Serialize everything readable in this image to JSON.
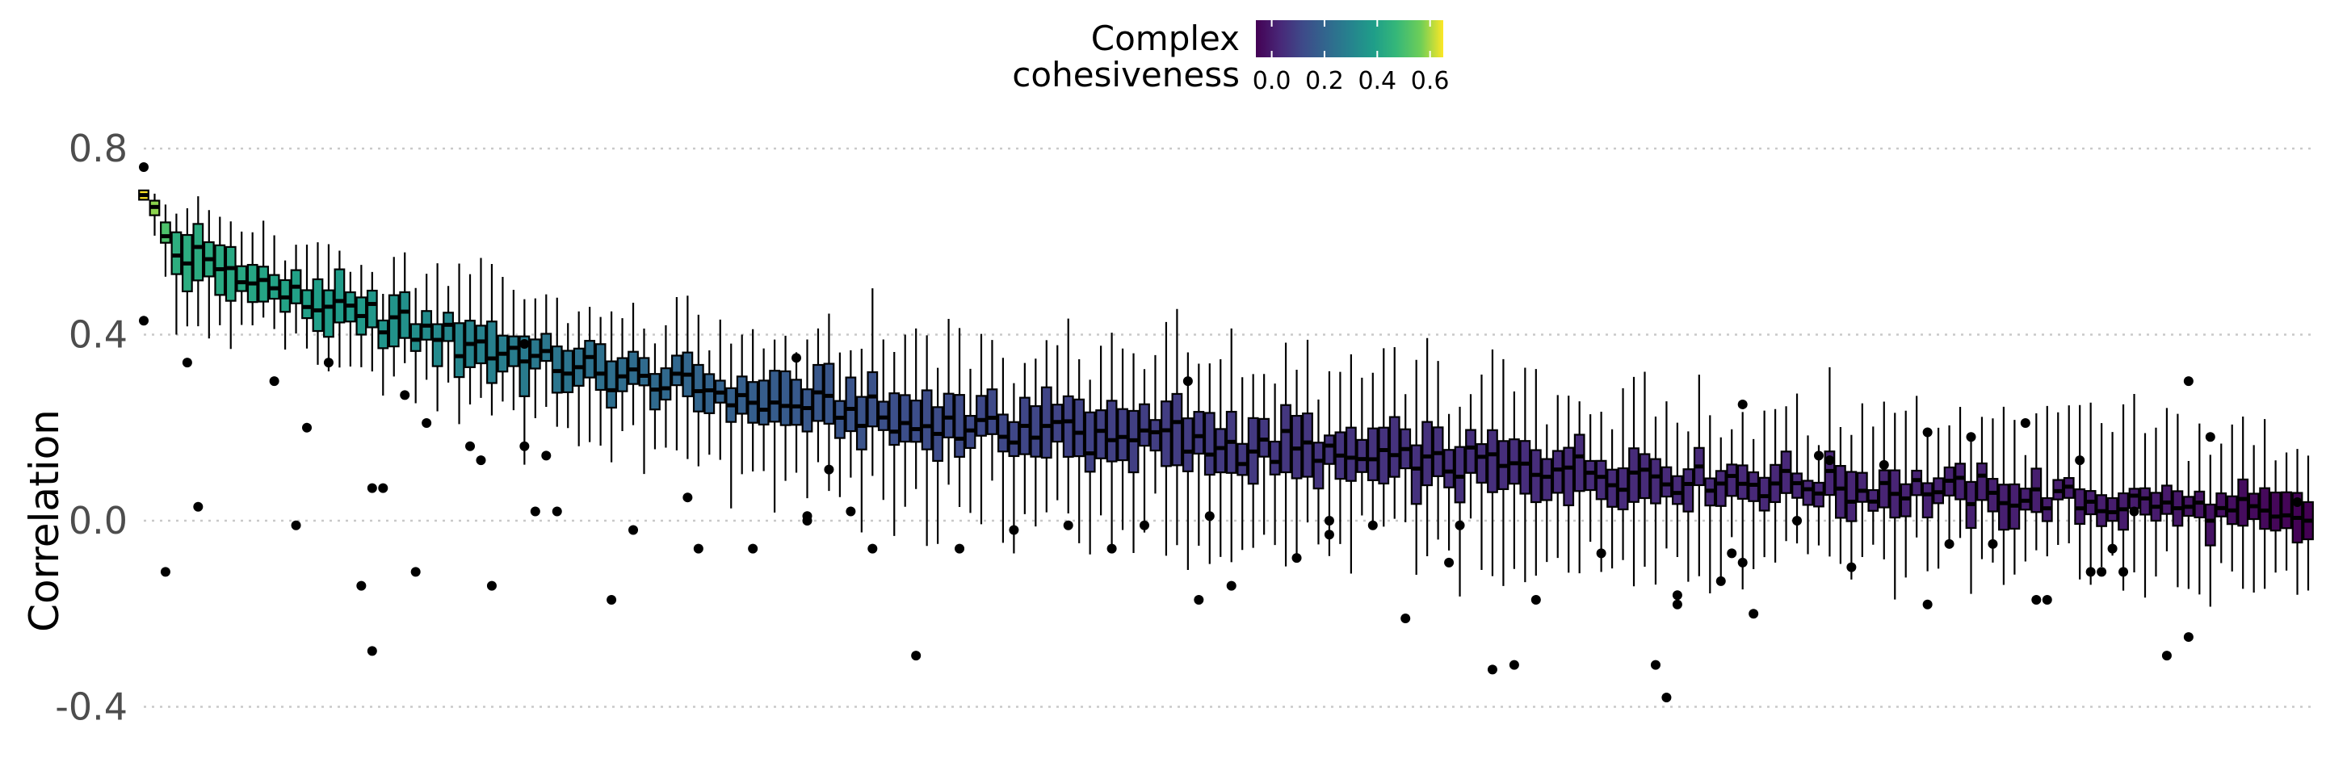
{
  "chart_data": {
    "type": "boxplot",
    "title": "",
    "xlabel": "",
    "ylabel": "Correlation",
    "ylim": [
      -0.43,
      0.86
    ],
    "y_ticks": [
      {
        "value": 0.8,
        "label": "0.8"
      },
      {
        "value": 0.4,
        "label": "0.4"
      },
      {
        "value": 0.0,
        "label": "0.0"
      },
      {
        "value": -0.4,
        "label": "-0.4"
      }
    ],
    "grid": "horizontal dotted",
    "x_ticks": "none",
    "color_legend": {
      "title_lines": [
        "Complex",
        "cohesiveness"
      ],
      "position": "top",
      "min": -0.06,
      "max": 0.65,
      "ticks": [
        {
          "value": 0.0,
          "label": "0.0"
        },
        {
          "value": 0.2,
          "label": "0.2"
        },
        {
          "value": 0.4,
          "label": "0.4"
        },
        {
          "value": 0.6,
          "label": "0.6"
        }
      ],
      "colormap": "viridis"
    },
    "boxes_order": "sorted by complex cohesiveness (descending); approximately 200 complexes",
    "box_count": 200,
    "anchors": [
      {
        "i": 0,
        "q1": 0.69,
        "med": 0.7,
        "q3": 0.71,
        "wlo": 0.69,
        "whi": 0.71,
        "color": 0.65
      },
      {
        "i": 3,
        "q1": 0.53,
        "med": 0.57,
        "q3": 0.62,
        "wlo": 0.4,
        "whi": 0.66,
        "color": 0.44
      },
      {
        "i": 10,
        "q1": 0.47,
        "med": 0.51,
        "q3": 0.55,
        "wlo": 0.42,
        "whi": 0.62,
        "color": 0.41
      },
      {
        "i": 20,
        "q1": 0.4,
        "med": 0.44,
        "q3": 0.48,
        "wlo": 0.33,
        "whi": 0.55,
        "color": 0.37
      },
      {
        "i": 30,
        "q1": 0.33,
        "med": 0.38,
        "q3": 0.43,
        "wlo": 0.25,
        "whi": 0.53,
        "color": 0.3
      },
      {
        "i": 40,
        "q1": 0.29,
        "med": 0.33,
        "q3": 0.37,
        "wlo": 0.16,
        "whi": 0.45,
        "color": 0.24
      },
      {
        "i": 55,
        "q1": 0.23,
        "med": 0.27,
        "q3": 0.31,
        "wlo": 0.1,
        "whi": 0.4,
        "color": 0.18
      },
      {
        "i": 70,
        "q1": 0.17,
        "med": 0.21,
        "q3": 0.27,
        "wlo": 0.03,
        "whi": 0.4,
        "color": 0.13
      },
      {
        "i": 90,
        "q1": 0.13,
        "med": 0.18,
        "q3": 0.24,
        "wlo": -0.02,
        "whi": 0.37,
        "color": 0.09
      },
      {
        "i": 110,
        "q1": 0.09,
        "med": 0.14,
        "q3": 0.19,
        "wlo": -0.05,
        "whi": 0.32,
        "color": 0.06
      },
      {
        "i": 130,
        "q1": 0.06,
        "med": 0.11,
        "q3": 0.15,
        "wlo": -0.08,
        "whi": 0.27,
        "color": 0.04
      },
      {
        "i": 150,
        "q1": 0.04,
        "med": 0.08,
        "q3": 0.12,
        "wlo": -0.09,
        "whi": 0.24,
        "color": 0.03
      },
      {
        "i": 170,
        "q1": 0.02,
        "med": 0.06,
        "q3": 0.09,
        "wlo": -0.09,
        "whi": 0.22,
        "color": 0.01
      },
      {
        "i": 185,
        "q1": 0.0,
        "med": 0.03,
        "q3": 0.06,
        "wlo": -0.12,
        "whi": 0.2,
        "color": 0.0
      },
      {
        "i": 199,
        "q1": -0.04,
        "med": 0.0,
        "q3": 0.04,
        "wlo": -0.15,
        "whi": 0.14,
        "color": -0.06
      }
    ],
    "outliers": [
      {
        "i": 0,
        "y": 0.76
      },
      {
        "i": 0,
        "y": 0.43
      },
      {
        "i": 2,
        "y": -0.11
      },
      {
        "i": 4,
        "y": 0.34
      },
      {
        "i": 5,
        "y": 0.03
      },
      {
        "i": 12,
        "y": 0.3
      },
      {
        "i": 14,
        "y": -0.01
      },
      {
        "i": 15,
        "y": 0.2
      },
      {
        "i": 17,
        "y": 0.34
      },
      {
        "i": 20,
        "y": -0.14
      },
      {
        "i": 21,
        "y": -0.28
      },
      {
        "i": 21,
        "y": 0.07
      },
      {
        "i": 22,
        "y": 0.07
      },
      {
        "i": 24,
        "y": 0.27
      },
      {
        "i": 25,
        "y": -0.11
      },
      {
        "i": 26,
        "y": 0.21
      },
      {
        "i": 30,
        "y": 0.16
      },
      {
        "i": 31,
        "y": 0.13
      },
      {
        "i": 32,
        "y": -0.14
      },
      {
        "i": 35,
        "y": 0.38
      },
      {
        "i": 35,
        "y": 0.16
      },
      {
        "i": 36,
        "y": 0.02
      },
      {
        "i": 37,
        "y": 0.14
      },
      {
        "i": 38,
        "y": 0.02
      },
      {
        "i": 43,
        "y": -0.17
      },
      {
        "i": 45,
        "y": -0.02
      },
      {
        "i": 50,
        "y": 0.05
      },
      {
        "i": 51,
        "y": -0.06
      },
      {
        "i": 56,
        "y": -0.06
      },
      {
        "i": 60,
        "y": 0.35
      },
      {
        "i": 61,
        "y": 0.01
      },
      {
        "i": 61,
        "y": 0.0
      },
      {
        "i": 63,
        "y": 0.11
      },
      {
        "i": 65,
        "y": 0.02
      },
      {
        "i": 67,
        "y": -0.06
      },
      {
        "i": 71,
        "y": -0.29
      },
      {
        "i": 75,
        "y": -0.06
      },
      {
        "i": 80,
        "y": -0.02
      },
      {
        "i": 85,
        "y": -0.01
      },
      {
        "i": 89,
        "y": -0.06
      },
      {
        "i": 92,
        "y": -0.01
      },
      {
        "i": 96,
        "y": 0.3
      },
      {
        "i": 97,
        "y": -0.17
      },
      {
        "i": 98,
        "y": 0.01
      },
      {
        "i": 100,
        "y": -0.14
      },
      {
        "i": 106,
        "y": -0.08
      },
      {
        "i": 109,
        "y": 0.0
      },
      {
        "i": 109,
        "y": -0.03
      },
      {
        "i": 113,
        "y": -0.01
      },
      {
        "i": 116,
        "y": -0.21
      },
      {
        "i": 120,
        "y": -0.09
      },
      {
        "i": 121,
        "y": -0.01
      },
      {
        "i": 124,
        "y": -0.32
      },
      {
        "i": 126,
        "y": -0.31
      },
      {
        "i": 128,
        "y": -0.17
      },
      {
        "i": 134,
        "y": -0.07
      },
      {
        "i": 139,
        "y": -0.31
      },
      {
        "i": 140,
        "y": -0.38
      },
      {
        "i": 141,
        "y": -0.16
      },
      {
        "i": 141,
        "y": -0.18
      },
      {
        "i": 145,
        "y": -0.13
      },
      {
        "i": 146,
        "y": -0.07
      },
      {
        "i": 147,
        "y": 0.25
      },
      {
        "i": 147,
        "y": -0.09
      },
      {
        "i": 148,
        "y": -0.2
      },
      {
        "i": 152,
        "y": 0.0
      },
      {
        "i": 154,
        "y": 0.14
      },
      {
        "i": 155,
        "y": 0.13
      },
      {
        "i": 157,
        "y": -0.1
      },
      {
        "i": 160,
        "y": 0.12
      },
      {
        "i": 164,
        "y": 0.19
      },
      {
        "i": 164,
        "y": -0.18
      },
      {
        "i": 166,
        "y": -0.05
      },
      {
        "i": 168,
        "y": 0.18
      },
      {
        "i": 170,
        "y": -0.05
      },
      {
        "i": 173,
        "y": 0.21
      },
      {
        "i": 174,
        "y": -0.17
      },
      {
        "i": 175,
        "y": -0.17
      },
      {
        "i": 178,
        "y": 0.13
      },
      {
        "i": 179,
        "y": -0.11
      },
      {
        "i": 180,
        "y": -0.11
      },
      {
        "i": 181,
        "y": -0.06
      },
      {
        "i": 182,
        "y": -0.11
      },
      {
        "i": 183,
        "y": 0.02
      },
      {
        "i": 186,
        "y": -0.29
      },
      {
        "i": 188,
        "y": 0.3
      },
      {
        "i": 188,
        "y": -0.25
      },
      {
        "i": 190,
        "y": 0.18
      },
      {
        "i": 198,
        "y": 0.04
      }
    ]
  }
}
